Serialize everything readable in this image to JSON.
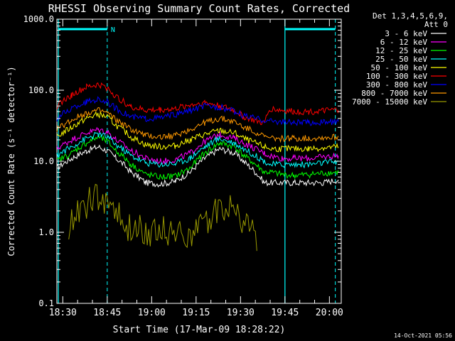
{
  "chart_data": {
    "type": "line",
    "title": "RHESSI Observing Summary Count Rates, Corrected",
    "xlabel": "Start Time (17-Mar-09 18:28:22)",
    "ylabel": "Corrected Count Rate (s⁻¹ detector⁻¹)",
    "yscale": "log",
    "ylim": [
      0.1,
      1000
    ],
    "xlim_minutes_after_18:28": [
      0,
      96
    ],
    "x_ticks": [
      "18:30",
      "18:45",
      "19:00",
      "19:15",
      "19:30",
      "19:45",
      "20:00"
    ],
    "y_ticks": [
      "0.1",
      "1.0",
      "10.0",
      "100.0",
      "1000.0"
    ],
    "legend_header": [
      "Det 1,3,4,5,6,9,",
      "Att 0"
    ],
    "legend_placement": "right",
    "timestamp": "14-Oct-2021 05:56",
    "bars": [
      {
        "label": "N",
        "start_minutes": 0.5,
        "end_minutes": 17.0,
        "color": "#00ffff"
      },
      {
        "label": "",
        "start_minutes": 77.0,
        "end_minutes": 94.0,
        "color": "#00ffff"
      }
    ],
    "series": [
      {
        "name": "3 - 6 keV",
        "color": "#ffffff",
        "x": [
          0,
          5,
          10,
          14,
          17,
          20,
          25,
          30,
          35,
          40,
          45,
          50,
          55,
          60,
          63,
          67,
          70,
          72,
          76,
          80,
          85,
          90,
          95
        ],
        "y": [
          8,
          11,
          14,
          16,
          14,
          11,
          7,
          5,
          4.8,
          5.2,
          7,
          11,
          15,
          13,
          10,
          7,
          5,
          5,
          5,
          5,
          5,
          5,
          5.5
        ]
      },
      {
        "name": "6 - 12 keV",
        "color": "#ff00ff",
        "x": [
          0,
          5,
          10,
          14,
          17,
          20,
          25,
          30,
          35,
          40,
          45,
          50,
          55,
          60,
          63,
          67,
          70,
          72,
          76,
          80,
          85,
          90,
          95
        ],
        "y": [
          15,
          20,
          25,
          28,
          26,
          20,
          14,
          11,
          10,
          10.5,
          13,
          19,
          24,
          21,
          18,
          15,
          13,
          12,
          11,
          11,
          11,
          11.5,
          12
        ]
      },
      {
        "name": "12 - 25 keV",
        "color": "#00ff00",
        "x": [
          0,
          5,
          10,
          14,
          17,
          20,
          25,
          30,
          35,
          40,
          45,
          50,
          55,
          60,
          63,
          67,
          70,
          72,
          76,
          80,
          85,
          90,
          95
        ],
        "y": [
          10,
          13,
          18,
          22,
          19,
          14,
          9,
          6.5,
          6,
          6.2,
          8,
          13,
          18,
          16,
          12,
          9,
          7,
          7,
          6.5,
          6.3,
          6.5,
          6.8,
          7
        ]
      },
      {
        "name": "25 - 50 keV",
        "color": "#00ffff",
        "x": [
          0,
          5,
          10,
          14,
          17,
          20,
          25,
          30,
          35,
          40,
          45,
          50,
          55,
          60,
          63,
          67,
          70,
          72,
          76,
          80,
          85,
          90,
          95
        ],
        "y": [
          12,
          16,
          21,
          24,
          22,
          17,
          12,
          9.5,
          9,
          9.3,
          11,
          16,
          21,
          18,
          15,
          12,
          10,
          9,
          9,
          9,
          9,
          9.5,
          10
        ]
      },
      {
        "name": "50 - 100 keV",
        "color": "#ffff00",
        "x": [
          0,
          5,
          10,
          14,
          17,
          20,
          25,
          30,
          35,
          40,
          45,
          50,
          55,
          60,
          63,
          67,
          70,
          72,
          76,
          80,
          85,
          90,
          95
        ],
        "y": [
          22,
          30,
          40,
          46,
          42,
          32,
          22,
          17,
          16,
          16.5,
          20,
          24,
          27,
          25,
          21,
          18,
          16,
          15,
          15,
          15,
          15,
          15.5,
          16
        ]
      },
      {
        "name": "100 - 300 keV",
        "color": "#ff0000",
        "x": [
          0,
          5,
          10,
          14,
          17,
          20,
          25,
          30,
          35,
          40,
          45,
          50,
          55,
          60,
          63,
          67,
          70,
          72,
          76,
          80,
          85,
          90,
          95
        ],
        "y": [
          60,
          85,
          110,
          120,
          108,
          80,
          58,
          52,
          53,
          55,
          62,
          67,
          60,
          52,
          42,
          37,
          34,
          55,
          52,
          50,
          50,
          51,
          53
        ]
      },
      {
        "name": "300 - 800 keV",
        "color": "#0000ff",
        "x": [
          0,
          5,
          10,
          14,
          17,
          20,
          25,
          30,
          35,
          40,
          45,
          50,
          55,
          60,
          63,
          67,
          70,
          72,
          76,
          80,
          85,
          90,
          95
        ],
        "y": [
          40,
          55,
          68,
          75,
          68,
          55,
          42,
          40,
          41,
          45,
          52,
          60,
          58,
          50,
          44,
          40,
          38,
          37,
          36,
          35,
          35,
          35.5,
          36
        ]
      },
      {
        "name": "800 - 7000 keV",
        "color": "#ff9900",
        "x": [
          0,
          5,
          10,
          14,
          17,
          20,
          25,
          30,
          35,
          40,
          45,
          50,
          55,
          60,
          63,
          67,
          70,
          72,
          76,
          80,
          85,
          90,
          95
        ],
        "y": [
          28,
          38,
          48,
          52,
          48,
          38,
          28,
          23,
          22,
          23,
          28,
          35,
          40,
          36,
          30,
          26,
          22,
          21,
          21,
          21,
          21,
          21.5,
          22
        ]
      },
      {
        "name": "7000 - 15000 keV",
        "color": "#999900",
        "x": [
          4,
          8,
          12,
          16,
          19,
          22,
          48,
          52,
          56,
          60,
          64,
          68
        ],
        "y": [
          1.2,
          2.2,
          2.8,
          2.9,
          2.5,
          1.1,
          1.0,
          1.8,
          2.4,
          2.0,
          1.3,
          0.8
        ]
      }
    ]
  }
}
